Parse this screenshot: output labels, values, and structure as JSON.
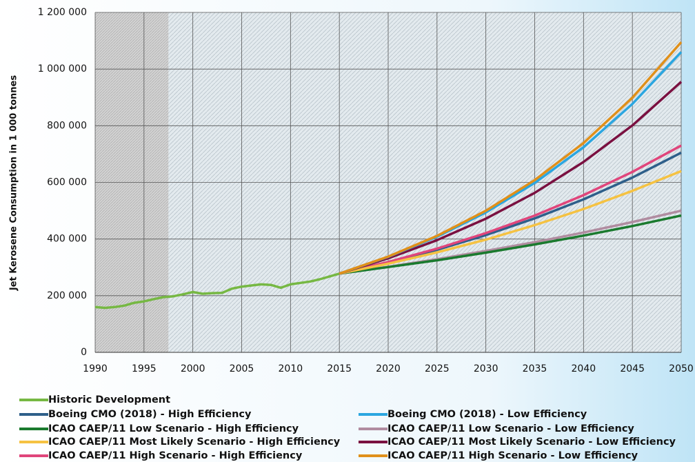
{
  "chart_data": {
    "type": "line",
    "ylabel": "Jet Kerosene Consumption in 1 000 tonnes",
    "xlim": [
      1990,
      2050
    ],
    "xticks": [
      1990,
      1995,
      2000,
      2005,
      2010,
      2015,
      2020,
      2025,
      2030,
      2035,
      2040,
      2045,
      2050
    ],
    "ylim": [
      0,
      1200000
    ],
    "yticks": [
      {
        "value": 0,
        "label": "0"
      },
      {
        "value": 200000,
        "label": "200 000"
      },
      {
        "value": 400000,
        "label": "400 000"
      },
      {
        "value": 600000,
        "label": "600 000"
      },
      {
        "value": 800000,
        "label": "800 000"
      },
      {
        "value": 1000000,
        "label": "1 000 000"
      },
      {
        "value": 1200000,
        "label": "1 200 000"
      }
    ],
    "grid": true,
    "legend": "bottom",
    "series": [
      {
        "name": "Historic Development",
        "color": "#76b843",
        "x": [
          1990,
          1991,
          1992,
          1993,
          1994,
          1995,
          1996,
          1997,
          1998,
          1999,
          2000,
          2001,
          2002,
          2003,
          2004,
          2005,
          2006,
          2007,
          2008,
          2009,
          2010,
          2011,
          2012,
          2013,
          2014,
          2015
        ],
        "values": [
          160000,
          157000,
          160000,
          165000,
          175000,
          180000,
          188000,
          195000,
          198000,
          205000,
          213000,
          207000,
          209000,
          210000,
          225000,
          232000,
          236000,
          240000,
          238000,
          228000,
          240000,
          245000,
          250000,
          258000,
          268000,
          278000
        ]
      },
      {
        "name": "Boeing CMO (2018) - High Efficiency",
        "color": "#2e5f8a",
        "x": [
          2015,
          2020,
          2025,
          2030,
          2035,
          2040,
          2045,
          2050
        ],
        "values": [
          278000,
          317000,
          362000,
          414000,
          473000,
          540000,
          617000,
          705000
        ]
      },
      {
        "name": "Boeing CMO (2018) - Low Efficiency",
        "color": "#2ba6e0",
        "x": [
          2015,
          2020,
          2025,
          2030,
          2035,
          2040,
          2045,
          2050
        ],
        "values": [
          278000,
          337000,
          408000,
          494000,
          598000,
          724000,
          877000,
          1060000
        ]
      },
      {
        "name": "ICAO CAEP/11 Low Scenario - High Efficiency",
        "color": "#1a7a2e",
        "x": [
          2015,
          2020,
          2025,
          2030,
          2035,
          2040,
          2045,
          2050
        ],
        "values": [
          278000,
          301000,
          325000,
          352000,
          381000,
          412000,
          446000,
          483000
        ]
      },
      {
        "name": "ICAO CAEP/11 Low Scenario - Low Efficiency",
        "color": "#b08ca0",
        "x": [
          2015,
          2020,
          2025,
          2030,
          2035,
          2040,
          2045,
          2050
        ],
        "values": [
          278000,
          302000,
          329000,
          358000,
          389000,
          423000,
          460000,
          500000
        ]
      },
      {
        "name": "ICAO CAEP/11 Most Likely Scenario - High Efficiency",
        "color": "#f5c242",
        "x": [
          2015,
          2020,
          2025,
          2030,
          2035,
          2040,
          2045,
          2050
        ],
        "values": [
          278000,
          313000,
          353000,
          398000,
          449000,
          506000,
          570000,
          640000
        ]
      },
      {
        "name": "ICAO CAEP/11 Most Likely Scenario - Low Efficiency",
        "color": "#7a1040",
        "x": [
          2015,
          2020,
          2025,
          2030,
          2035,
          2040,
          2045,
          2050
        ],
        "values": [
          278000,
          332000,
          396000,
          472000,
          563000,
          672000,
          801000,
          955000
        ]
      },
      {
        "name": "ICAO CAEP/11 High Scenario - High Efficiency",
        "color": "#e0457b",
        "x": [
          2015,
          2020,
          2025,
          2030,
          2035,
          2040,
          2045,
          2050
        ],
        "values": [
          278000,
          319000,
          366000,
          421000,
          483000,
          555000,
          637000,
          730000
        ]
      },
      {
        "name": "ICAO CAEP/11 High Scenario - Low Efficiency",
        "color": "#e0901a",
        "x": [
          2015,
          2020,
          2025,
          2030,
          2035,
          2040,
          2045,
          2050
        ],
        "values": [
          278000,
          338000,
          411000,
          500000,
          608000,
          739000,
          899000,
          1095000
        ]
      }
    ]
  }
}
